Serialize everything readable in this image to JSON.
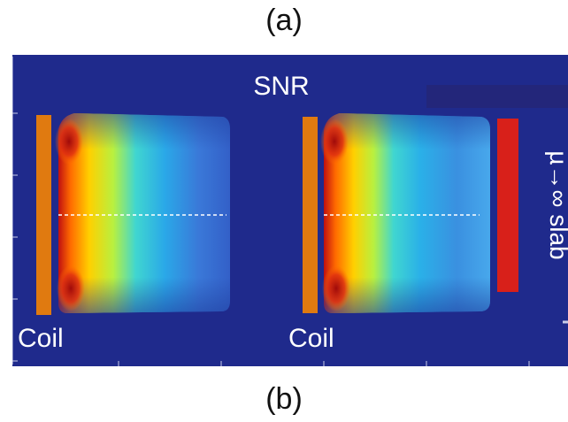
{
  "figure_top_label": "(a)",
  "figure_bottom_label": "(b)",
  "map": {
    "title": "SNR",
    "left_panel": {
      "coil_label": "Coil"
    },
    "right_panel": {
      "coil_label": "Coil",
      "slab_label": "µ→∞ slab"
    }
  },
  "colors": {
    "background": "#1f2a8c",
    "coil": "#e07a10",
    "slab": "#d8201a",
    "text": "#ffffff"
  }
}
